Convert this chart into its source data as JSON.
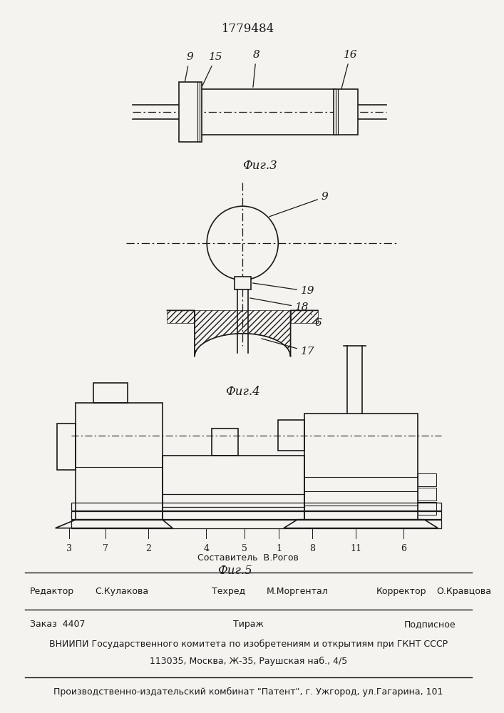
{
  "patent_number": "1779484",
  "fig3_label": "Фиг.3",
  "fig4_label": "Фиг.4",
  "fig5_label": "Фиг.5",
  "footer_role1": "Редактор",
  "footer_name1": "С.Кулакова",
  "footer_role2": "Составитель",
  "footer_name2": "В.Рогов",
  "footer_role3": "Техред",
  "footer_name3": "М.Моргентал",
  "footer_role4": "Корректор",
  "footer_name4": "О.Кравцова",
  "footer_order": "Заказ  4407",
  "footer_tirazh": "Тираж",
  "footer_podp": "Подписное",
  "footer_vniip1": "ВНИИПИ Государственного комитета по изобретениям и открытиям при ГКНТ СССР",
  "footer_vniip2": "113035, Москва, Ж-35, Раушская наб., 4/5",
  "footer_prod": "Производственно-издательский комбинат \"Патент\", г. Ужгород, ул.Гагарина, 101",
  "bg_color": "#f5f3ef",
  "line_color": "#1a1a1a"
}
